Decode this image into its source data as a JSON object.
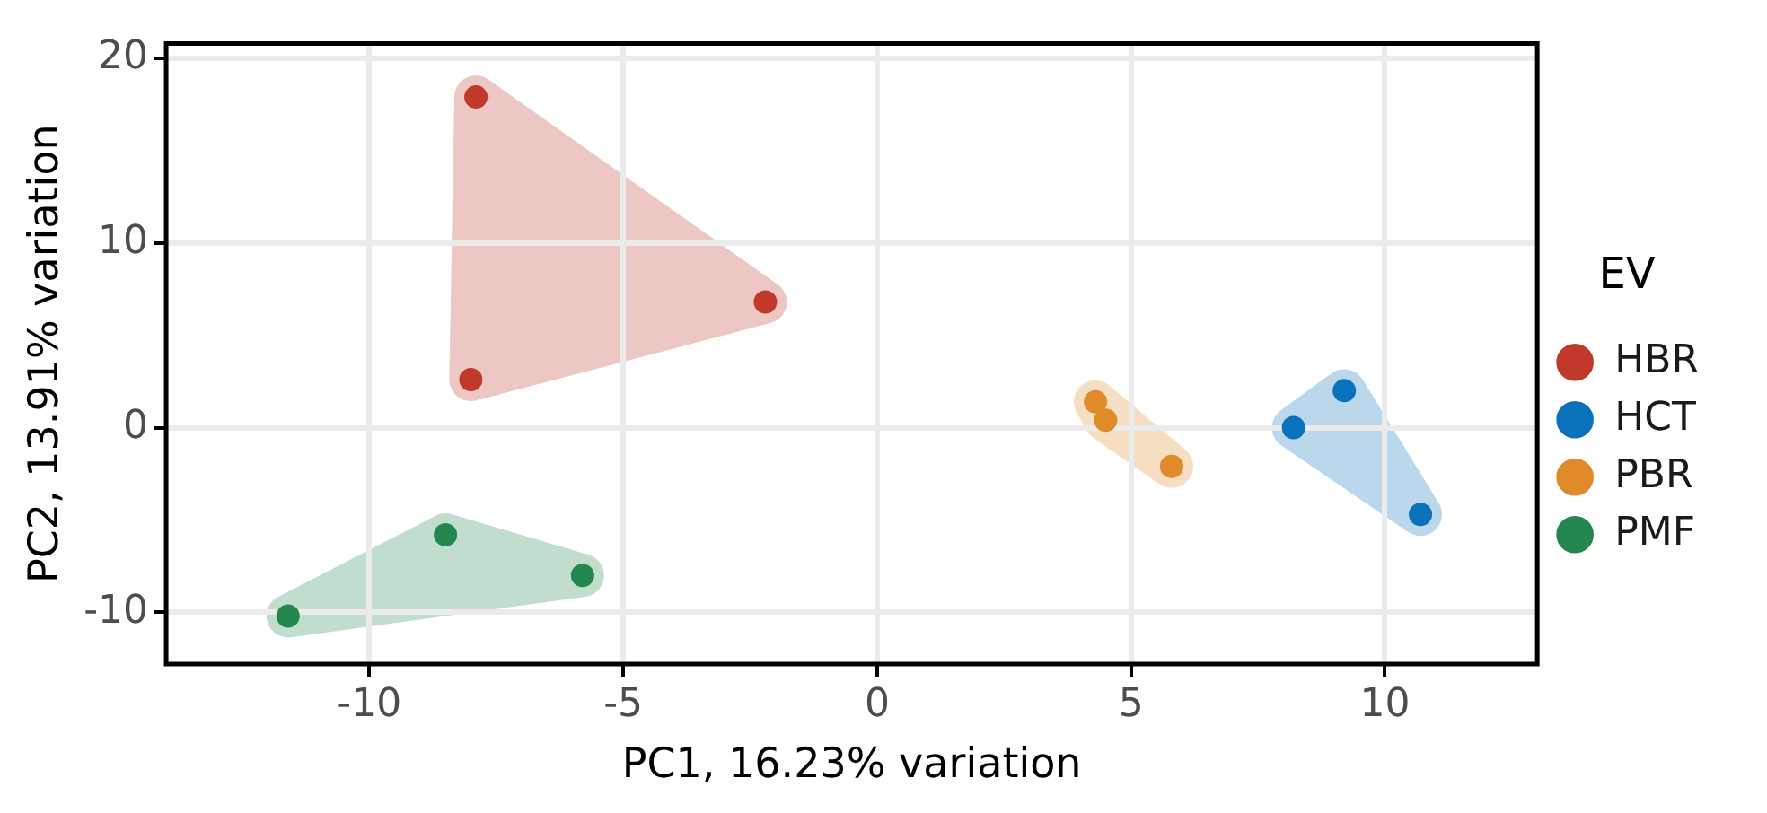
{
  "chart_data": {
    "type": "scatter",
    "xlabel": "PC1, 16.23% variation",
    "ylabel": "PC2, 13.91% variation",
    "legend_title": "EV",
    "legend": "right",
    "grid": true,
    "marker": "circle",
    "xlim": [
      -14,
      13
    ],
    "xticks": [
      -10,
      -5,
      0,
      5,
      10
    ],
    "ylim": [
      -12.8,
      20.8
    ],
    "yticks": [
      -10,
      0,
      10,
      20
    ],
    "series": [
      {
        "name": "HBR",
        "color": "#c0392b",
        "x": [
          -7.9,
          -2.2,
          -8.0
        ],
        "values": [
          17.9,
          6.8,
          2.6
        ]
      },
      {
        "name": "HCT",
        "color": "#0a72ba",
        "x": [
          9.2,
          8.2,
          10.7
        ],
        "values": [
          2.0,
          0.0,
          -4.7
        ]
      },
      {
        "name": "PBR",
        "color": "#e08a2a",
        "x": [
          4.3,
          4.5,
          5.8
        ],
        "values": [
          1.4,
          0.4,
          -2.1
        ]
      },
      {
        "name": "PMF",
        "color": "#23874f",
        "x": [
          -8.5,
          -5.8,
          -11.6
        ],
        "values": [
          -5.8,
          -8.0,
          -10.2
        ]
      }
    ]
  }
}
